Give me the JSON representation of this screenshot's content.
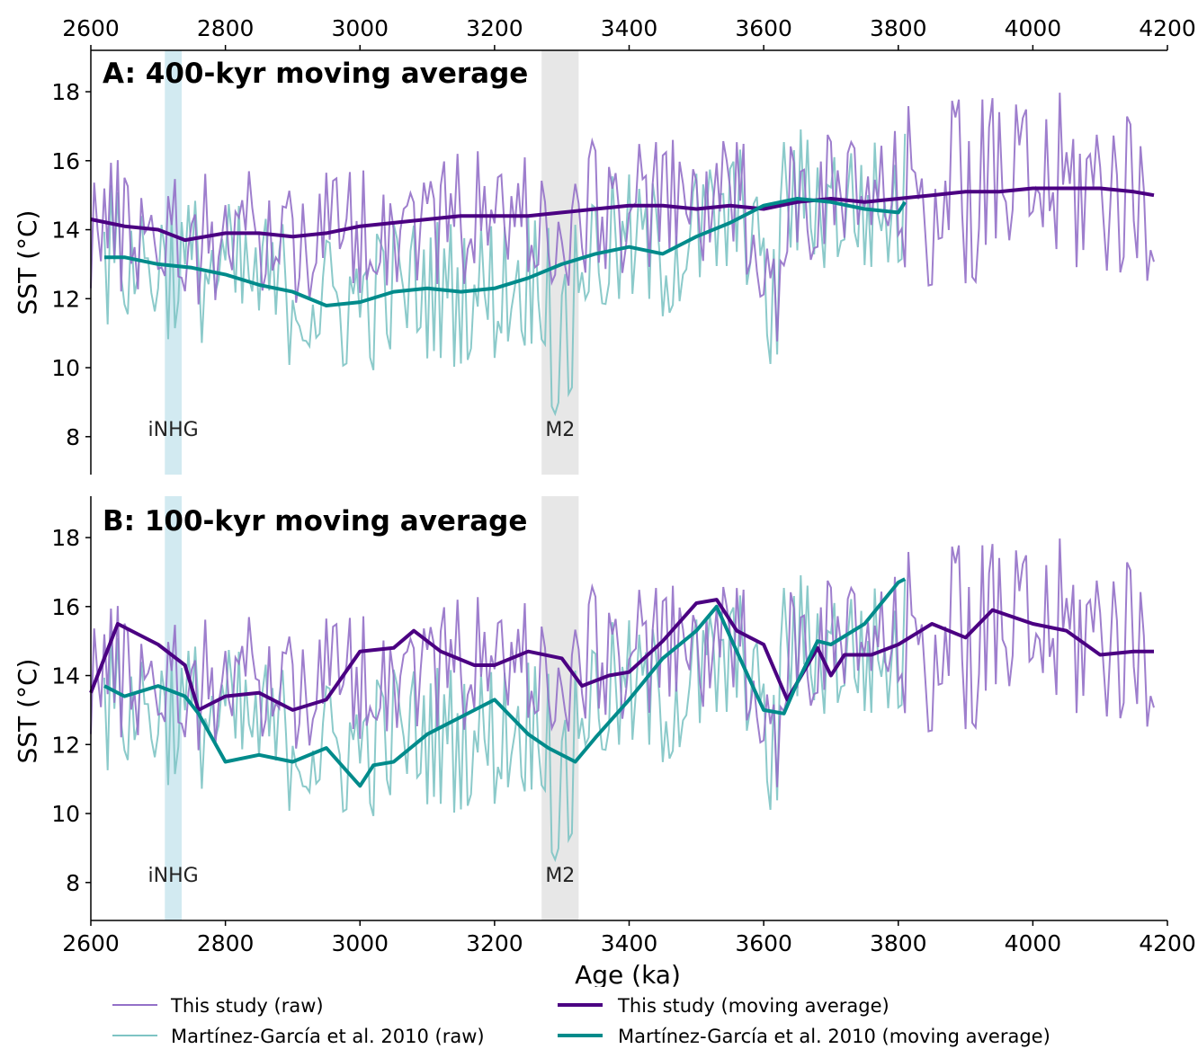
{
  "chart_data": [
    {
      "id": "A",
      "type": "line",
      "title": "A: 400-kyr moving average",
      "xlabel": "",
      "ylabel": "SST (°C)",
      "xlim": [
        2600,
        4200
      ],
      "ylim": [
        6.9,
        19.2
      ],
      "xticks": [
        2600,
        2800,
        3000,
        3200,
        3400,
        3600,
        3800,
        4000,
        4200
      ],
      "yticks": [
        8,
        10,
        12,
        14,
        16,
        18
      ],
      "x_tick_position": "top",
      "grid": false,
      "events": [
        {
          "label": "iNHG",
          "x_range": [
            2710,
            2735
          ],
          "color": "#add8e6"
        },
        {
          "label": "M2",
          "x_range": [
            3270,
            3325
          ],
          "color": "#d3d3d3"
        }
      ],
      "series": [
        {
          "name": "This study (moving average)",
          "role": "this-smooth",
          "color": "#4b0082",
          "x": [
            2600,
            2650,
            2700,
            2740,
            2800,
            2850,
            2900,
            2950,
            3000,
            3050,
            3100,
            3150,
            3200,
            3250,
            3300,
            3350,
            3400,
            3450,
            3500,
            3550,
            3600,
            3650,
            3700,
            3750,
            3800,
            3850,
            3900,
            3950,
            4000,
            4050,
            4100,
            4150,
            4180
          ],
          "y": [
            14.3,
            14.1,
            14.0,
            13.7,
            13.9,
            13.9,
            13.8,
            13.9,
            14.1,
            14.2,
            14.3,
            14.4,
            14.4,
            14.4,
            14.5,
            14.6,
            14.7,
            14.7,
            14.6,
            14.7,
            14.6,
            14.8,
            14.9,
            14.8,
            14.9,
            15.0,
            15.1,
            15.1,
            15.2,
            15.2,
            15.2,
            15.1,
            15.0
          ]
        },
        {
          "name": "Martínez-García et al. 2010 (moving average)",
          "role": "mg-smooth",
          "color": "#008b8b",
          "x": [
            2620,
            2650,
            2700,
            2750,
            2800,
            2850,
            2900,
            2950,
            3000,
            3050,
            3100,
            3150,
            3200,
            3250,
            3300,
            3350,
            3400,
            3450,
            3500,
            3550,
            3600,
            3650,
            3700,
            3750,
            3800,
            3810
          ],
          "y": [
            13.2,
            13.2,
            13.0,
            12.9,
            12.7,
            12.4,
            12.2,
            11.8,
            11.9,
            12.2,
            12.3,
            12.2,
            12.3,
            12.6,
            13.0,
            13.3,
            13.5,
            13.3,
            13.8,
            14.2,
            14.7,
            14.9,
            14.8,
            14.6,
            14.5,
            14.8
          ]
        }
      ]
    },
    {
      "id": "B",
      "type": "line",
      "title": "B: 100-kyr moving average",
      "xlabel": "Age (ka)",
      "ylabel": "SST (°C)",
      "xlim": [
        2600,
        4200
      ],
      "ylim": [
        6.9,
        19.2
      ],
      "xticks": [
        2600,
        2800,
        3000,
        3200,
        3400,
        3600,
        3800,
        4000,
        4200
      ],
      "yticks": [
        8,
        10,
        12,
        14,
        16,
        18
      ],
      "x_tick_position": "bottom",
      "grid": false,
      "events": [
        {
          "label": "iNHG",
          "x_range": [
            2710,
            2735
          ],
          "color": "#add8e6"
        },
        {
          "label": "M2",
          "x_range": [
            3270,
            3325
          ],
          "color": "#d3d3d3"
        }
      ],
      "series": [
        {
          "name": "This study (moving average)",
          "role": "this-smooth",
          "color": "#4b0082",
          "x": [
            2600,
            2640,
            2700,
            2740,
            2760,
            2800,
            2850,
            2900,
            2950,
            3000,
            3050,
            3080,
            3120,
            3170,
            3200,
            3250,
            3300,
            3330,
            3370,
            3400,
            3450,
            3500,
            3530,
            3560,
            3600,
            3635,
            3680,
            3700,
            3720,
            3760,
            3800,
            3850,
            3900,
            3940,
            4000,
            4050,
            4100,
            4150,
            4180
          ],
          "y": [
            13.5,
            15.5,
            14.9,
            14.3,
            13.0,
            13.4,
            13.5,
            13.0,
            13.3,
            14.7,
            14.8,
            15.3,
            14.7,
            14.3,
            14.3,
            14.7,
            14.5,
            13.7,
            14.0,
            14.1,
            15.0,
            16.1,
            16.2,
            15.3,
            14.9,
            13.3,
            14.8,
            14.0,
            14.6,
            14.6,
            14.9,
            15.5,
            15.1,
            15.9,
            15.5,
            15.3,
            14.6,
            14.7,
            14.7
          ]
        },
        {
          "name": "Martínez-García et al. 2010 (moving average)",
          "role": "mg-smooth",
          "color": "#008b8b",
          "x": [
            2620,
            2650,
            2700,
            2740,
            2760,
            2800,
            2850,
            2900,
            2950,
            3000,
            3020,
            3050,
            3100,
            3150,
            3200,
            3250,
            3280,
            3320,
            3350,
            3400,
            3450,
            3500,
            3530,
            3560,
            3600,
            3630,
            3650,
            3680,
            3700,
            3750,
            3800,
            3810
          ],
          "y": [
            13.7,
            13.4,
            13.7,
            13.4,
            12.9,
            11.5,
            11.7,
            11.5,
            11.9,
            10.8,
            11.4,
            11.5,
            12.3,
            12.8,
            13.3,
            12.3,
            11.9,
            11.5,
            12.2,
            13.3,
            14.5,
            15.3,
            16.0,
            14.7,
            13.0,
            12.9,
            13.8,
            15.0,
            14.9,
            15.5,
            16.7,
            16.8
          ]
        }
      ]
    }
  ],
  "legend": [
    {
      "label": "This study (raw)",
      "color": "#9370c8",
      "style": "thin"
    },
    {
      "label": "This study (moving average)",
      "color": "#4b0082",
      "style": "thick"
    },
    {
      "label": "Martínez-García et al. 2010 (raw)",
      "color": "#7ec4c4",
      "style": "thin"
    },
    {
      "label": "Martínez-García et al. 2010 (moving average)",
      "color": "#008b8b",
      "style": "thick"
    }
  ]
}
